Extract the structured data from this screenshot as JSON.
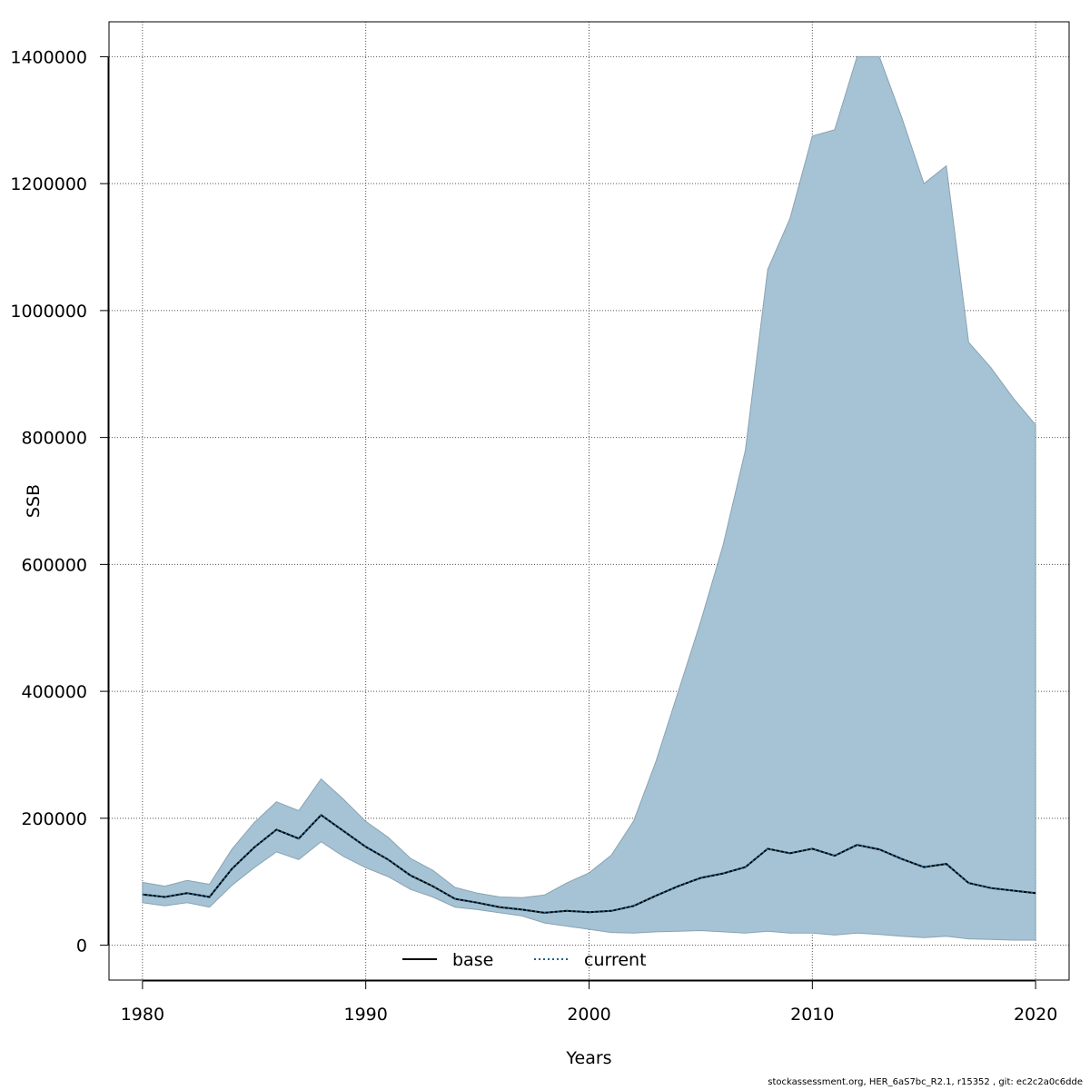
{
  "footer_text": "stockassessment.org, HER_6aS7bc_R2.1, r15352 , git: ec2c2a0c6dde",
  "colors": {
    "band_fill": "#a5c3d4",
    "band_stroke": "#8aa3b2",
    "base_line": "#000000",
    "current_line": "#1f5f8b",
    "grid": "#555555"
  },
  "chart_data": {
    "type": "line",
    "title": "",
    "xlabel": "Years",
    "ylabel": "SSB",
    "xlim": [
      1978.5,
      2021.5
    ],
    "ylim": [
      -55000,
      1455000
    ],
    "xticks": [
      1980,
      1990,
      2000,
      2010,
      2020
    ],
    "yticks": [
      0,
      200000,
      400000,
      600000,
      800000,
      1000000,
      1200000,
      1400000
    ],
    "grid": true,
    "legend_position": "bottom-center",
    "x": [
      1980,
      1981,
      1982,
      1983,
      1984,
      1985,
      1986,
      1987,
      1988,
      1989,
      1990,
      1991,
      1992,
      1993,
      1994,
      1995,
      1996,
      1997,
      1998,
      1999,
      2000,
      2001,
      2002,
      2003,
      2004,
      2005,
      2006,
      2007,
      2008,
      2009,
      2010,
      2011,
      2012,
      2013,
      2014,
      2015,
      2016,
      2017,
      2018,
      2019,
      2020
    ],
    "series": [
      {
        "name": "base",
        "style": "solid",
        "values": [
          80000,
          76000,
          82000,
          76000,
          120000,
          154000,
          182000,
          168000,
          205000,
          180000,
          155000,
          135000,
          110000,
          93000,
          73000,
          67000,
          60000,
          56000,
          51000,
          54000,
          52000,
          54000,
          62000,
          78000,
          93000,
          106000,
          113000,
          123000,
          152000,
          145000,
          152000,
          141000,
          158000,
          151000,
          136000,
          123000,
          128000,
          98000,
          90000,
          86000,
          82000
        ]
      },
      {
        "name": "current",
        "style": "dotted",
        "values": [
          80000,
          76000,
          82000,
          76000,
          120000,
          154000,
          182000,
          168000,
          205000,
          180000,
          155000,
          135000,
          110000,
          93000,
          73000,
          67000,
          60000,
          56000,
          51000,
          54000,
          52000,
          54000,
          62000,
          78000,
          93000,
          106000,
          113000,
          123000,
          152000,
          145000,
          152000,
          141000,
          158000,
          151000,
          136000,
          123000,
          128000,
          98000,
          90000,
          86000,
          82000
        ]
      }
    ],
    "confidence_band": {
      "lower": [
        67000,
        62000,
        67000,
        60000,
        94000,
        122000,
        147000,
        135000,
        163000,
        140000,
        122000,
        108000,
        88000,
        76000,
        60000,
        56000,
        51000,
        46000,
        35000,
        30000,
        25000,
        20000,
        19000,
        21000,
        22000,
        23000,
        21000,
        19000,
        22000,
        19000,
        19000,
        16000,
        19000,
        17000,
        14000,
        12000,
        14000,
        10000,
        9000,
        8000,
        8000
      ],
      "upper": [
        99000,
        93000,
        102000,
        96000,
        151000,
        193000,
        226000,
        212000,
        262000,
        230000,
        195000,
        170000,
        137000,
        118000,
        91000,
        82000,
        76000,
        75000,
        79000,
        98000,
        114000,
        142000,
        196000,
        290000,
        400000,
        510000,
        630000,
        780000,
        1065000,
        1145000,
        1275000,
        1285000,
        1400000,
        1400000,
        1305000,
        1200000,
        1228000,
        950000,
        910000,
        862000,
        820000
      ]
    }
  }
}
